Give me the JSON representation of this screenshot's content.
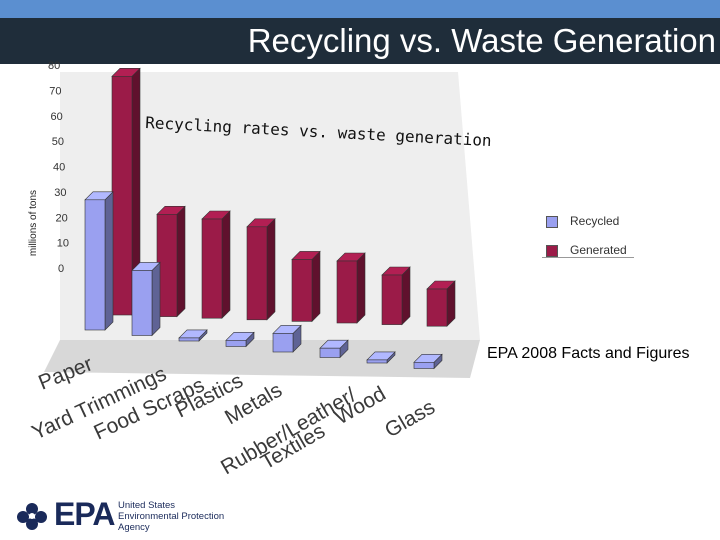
{
  "slide": {
    "title": "Recycling vs. Waste Generation",
    "source_note": "EPA 2008 Facts and Figures",
    "logo_letters": "EPA",
    "logo_lines": [
      "United States",
      "Environmental Protection",
      "Agency"
    ]
  },
  "colors": {
    "recycled": "#9aa0f0",
    "generated": "#9b1b48",
    "title_bar": "#1f2d3a",
    "top_band": "#5b8fd0"
  },
  "chart_data": {
    "type": "bar",
    "title": "Recycling rates vs. waste generation",
    "ylabel": "millions of tons",
    "ylim": [
      0,
      80
    ],
    "y_ticks": [
      0,
      10,
      20,
      30,
      40,
      50,
      60,
      70,
      80
    ],
    "categories": [
      "Paper",
      "Yard Trimmings",
      "Food Scraps",
      "Plastics",
      "Metals",
      "Rubber/Leather/ Textiles",
      "Wood",
      "Glass"
    ],
    "series": [
      {
        "name": "Recycled",
        "values": [
          42,
          21,
          1,
          2,
          6,
          3,
          1,
          2
        ]
      },
      {
        "name": "Generated",
        "values": [
          77,
          33,
          32,
          30,
          20,
          20,
          16,
          12
        ]
      }
    ],
    "legend_position": "right"
  }
}
